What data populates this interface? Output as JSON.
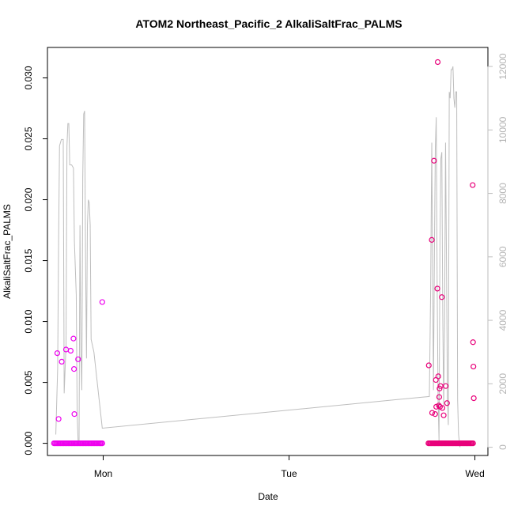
{
  "chart_data": {
    "type": "scatter",
    "title": "ATOM2 Northeast_Pacific_2 AlkaliSaltFrac_PALMS",
    "xlabel": "Date",
    "ylabel": "AlkaliSaltFrac_PALMS",
    "x_ticks": [
      {
        "label": "Mon",
        "value": 0
      },
      {
        "label": "Tue",
        "value": 1
      },
      {
        "label": "Wed",
        "value": 2
      }
    ],
    "x_range": [
      -0.3,
      2.07
    ],
    "y_left": {
      "range": [
        -0.001,
        0.0325
      ],
      "ticks": [
        "0.000",
        "0.005",
        "0.010",
        "0.015",
        "0.020",
        "0.025",
        "0.030"
      ],
      "tick_values": [
        0,
        0.005,
        0.01,
        0.015,
        0.02,
        0.025,
        0.03
      ]
    },
    "y_right": {
      "range": [
        -260,
        12600
      ],
      "ticks": [
        "0",
        "2000",
        "4000",
        "6000",
        "8000",
        "10000",
        "12000"
      ],
      "tick_values": [
        0,
        2000,
        4000,
        6000,
        8000,
        10000,
        12000
      ],
      "color": "#bebebe"
    },
    "colors": {
      "altitude_line": "#bebebe",
      "points_group1": "#ee00ee",
      "points_group2": "#e8007a"
    },
    "altitude_line": [
      [
        -0.255,
        400
      ],
      [
        -0.245,
        2500
      ],
      [
        -0.24,
        6500
      ],
      [
        -0.235,
        9500
      ],
      [
        -0.225,
        9700
      ],
      [
        -0.215,
        9700
      ],
      [
        -0.21,
        1700
      ],
      [
        -0.2,
        3200
      ],
      [
        -0.195,
        9500
      ],
      [
        -0.19,
        10200
      ],
      [
        -0.185,
        10200
      ],
      [
        -0.18,
        8900
      ],
      [
        -0.17,
        8900
      ],
      [
        -0.16,
        8800
      ],
      [
        -0.155,
        6500
      ],
      [
        -0.145,
        4800
      ],
      [
        -0.14,
        1000
      ],
      [
        -0.135,
        200
      ],
      [
        -0.13,
        50
      ],
      [
        -0.125,
        7000
      ],
      [
        -0.12,
        3000
      ],
      [
        -0.115,
        1800
      ],
      [
        -0.11,
        8500
      ],
      [
        -0.105,
        10500
      ],
      [
        -0.1,
        10600
      ],
      [
        -0.095,
        6000
      ],
      [
        -0.09,
        2800
      ],
      [
        -0.085,
        7000
      ],
      [
        -0.08,
        7800
      ],
      [
        -0.075,
        7700
      ],
      [
        -0.07,
        7000
      ],
      [
        -0.065,
        3400
      ],
      [
        -0.05,
        3000
      ],
      [
        -0.005,
        600
      ],
      [
        1.755,
        1600
      ],
      [
        1.762,
        5000
      ],
      [
        1.768,
        9600
      ],
      [
        1.772,
        6000
      ],
      [
        1.777,
        1800
      ],
      [
        1.782,
        6000
      ],
      [
        1.787,
        9400
      ],
      [
        1.792,
        10400
      ],
      [
        1.797,
        5000
      ],
      [
        1.802,
        1500
      ],
      [
        1.807,
        200
      ],
      [
        1.812,
        6500
      ],
      [
        1.817,
        9100
      ],
      [
        1.822,
        9300
      ],
      [
        1.827,
        4200
      ],
      [
        1.832,
        1300
      ],
      [
        1.837,
        4000
      ],
      [
        1.842,
        9600
      ],
      [
        1.847,
        6000
      ],
      [
        1.852,
        1600
      ],
      [
        1.857,
        700
      ],
      [
        1.862,
        11200
      ],
      [
        1.867,
        11000
      ],
      [
        1.872,
        11900
      ],
      [
        1.877,
        11900
      ],
      [
        1.882,
        12000
      ],
      [
        1.887,
        11000
      ],
      [
        1.892,
        10700
      ],
      [
        1.897,
        11200
      ],
      [
        1.902,
        11200
      ],
      [
        1.907,
        1500
      ],
      [
        1.912,
        400
      ],
      [
        1.92,
        0
      ]
    ],
    "series": [
      {
        "color": "#ee00ee",
        "points": [
          [
            -0.247,
            0.0074
          ],
          [
            -0.24,
            0.002
          ],
          [
            -0.223,
            0.0067
          ],
          [
            -0.2,
            0.0077
          ],
          [
            -0.175,
            0.0076
          ],
          [
            -0.16,
            0.0086
          ],
          [
            -0.157,
            0.0061
          ],
          [
            -0.155,
            0.0024
          ],
          [
            -0.135,
            0.0069
          ],
          [
            -0.005,
            0.0116
          ]
        ]
      },
      {
        "color": "#e8007a",
        "points": [
          [
            1.752,
            0.0064
          ],
          [
            1.768,
            0.0167
          ],
          [
            1.77,
            0.0025
          ],
          [
            1.78,
            0.0232
          ],
          [
            1.786,
            0.0024
          ],
          [
            1.79,
            0.0052
          ],
          [
            1.792,
            0.003
          ],
          [
            1.798,
            0.0127
          ],
          [
            1.8,
            0.0313
          ],
          [
            1.803,
            0.0055
          ],
          [
            1.806,
            0.0031
          ],
          [
            1.808,
            0.0038
          ],
          [
            1.81,
            0.0045
          ],
          [
            1.812,
            0.003
          ],
          [
            1.815,
            0.0047
          ],
          [
            1.822,
            0.012
          ],
          [
            1.825,
            0.0029
          ],
          [
            1.832,
            0.0023
          ],
          [
            1.843,
            0.0047
          ],
          [
            1.85,
            0.0033
          ],
          [
            1.988,
            0.0212
          ],
          [
            1.99,
            0.0083
          ],
          [
            1.992,
            0.0063
          ],
          [
            1.994,
            0.0037
          ]
        ]
      }
    ],
    "zero_clusters": [
      {
        "color": "#ee00ee",
        "x_start": -0.265,
        "x_end": -0.005,
        "count": 45
      },
      {
        "color": "#e8007a",
        "x_start": 1.75,
        "x_end": 1.99,
        "count": 45
      }
    ]
  }
}
